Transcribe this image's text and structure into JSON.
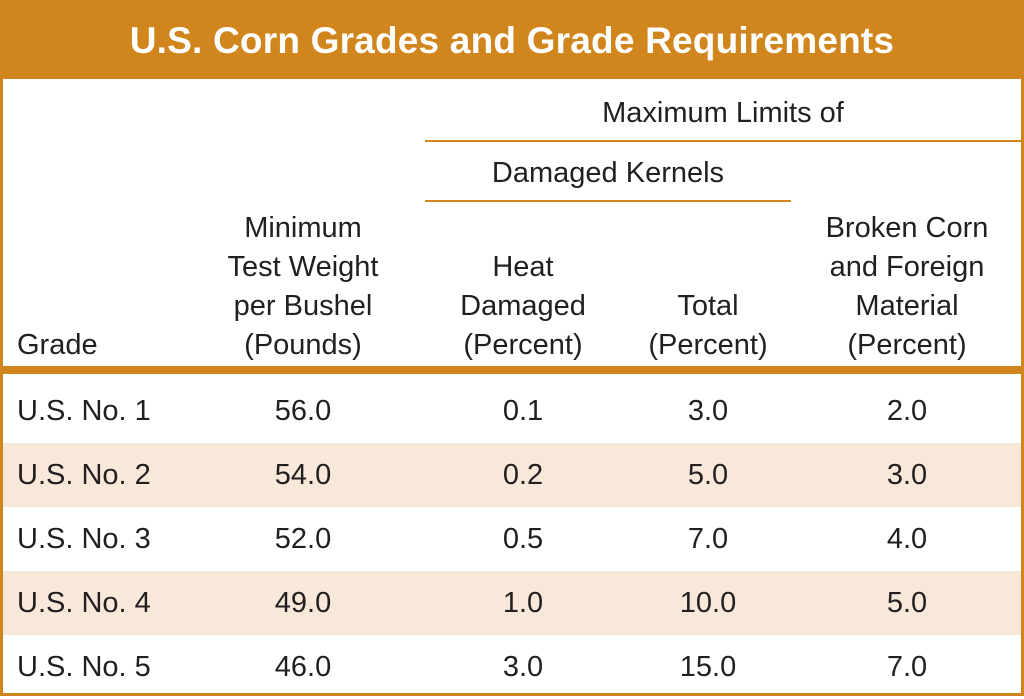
{
  "title": "U.S. Corn Grades and Grade Requirements",
  "header": {
    "group_label": "Maximum Limits of",
    "subgroup_label": "Damaged Kernels",
    "columns": [
      "Grade",
      "Minimum\nTest Weight\nper Bushel\n(Pounds)",
      "Heat\nDamaged\n(Percent)",
      "Total\n(Percent)",
      "Broken Corn\nand Foreign\nMaterial\n(Percent)"
    ]
  },
  "rows": [
    [
      "U.S. No. 1",
      "56.0",
      "0.1",
      "3.0",
      "2.0"
    ],
    [
      "U.S. No. 2",
      "54.0",
      "0.2",
      "5.0",
      "3.0"
    ],
    [
      "U.S. No. 3",
      "52.0",
      "0.5",
      "7.0",
      "4.0"
    ],
    [
      "U.S. No. 4",
      "49.0",
      "1.0",
      "10.0",
      "5.0"
    ],
    [
      "U.S. No. 5",
      "46.0",
      "3.0",
      "15.0",
      "7.0"
    ]
  ],
  "colors": {
    "accent": "#d1861d",
    "row_shade": "#f8e8d9",
    "text": "#231f20"
  }
}
